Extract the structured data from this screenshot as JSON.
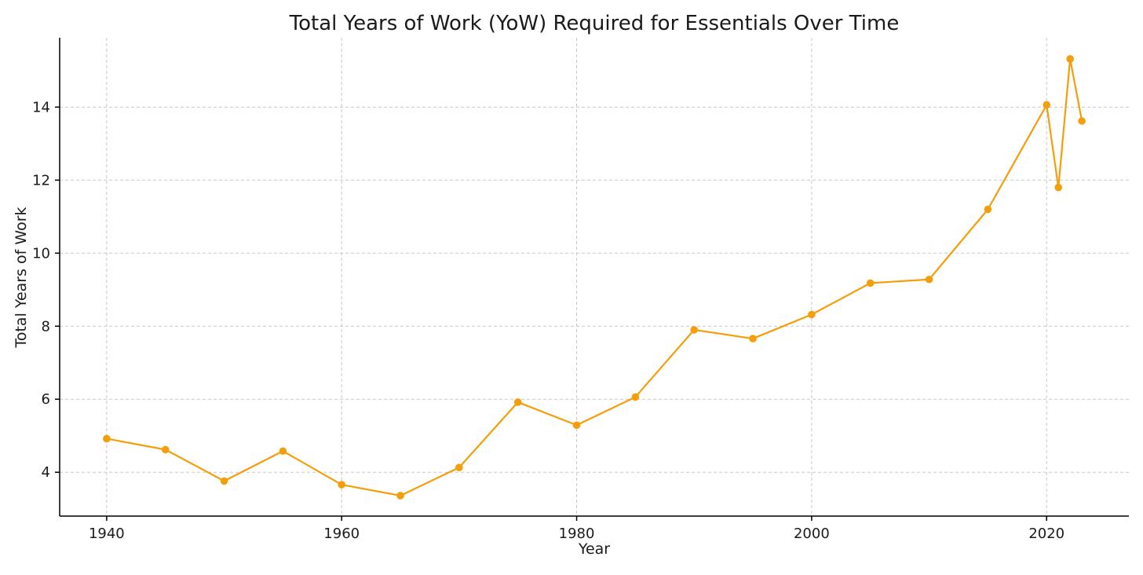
{
  "chart_data": {
    "type": "line",
    "title": "Total Years of Work (YoW) Required for Essentials Over Time",
    "xlabel": "Year",
    "ylabel": "Total Years of Work",
    "xlim": [
      1936,
      2027
    ],
    "ylim": [
      2.8,
      15.9
    ],
    "x_ticks": [
      1940,
      1960,
      1980,
      2000,
      2020
    ],
    "y_ticks": [
      4,
      6,
      8,
      10,
      12,
      14
    ],
    "grid": true,
    "series": [
      {
        "color": "#f59e0b",
        "marker": "circle",
        "x": [
          1940,
          1945,
          1950,
          1955,
          1960,
          1965,
          1970,
          1975,
          1980,
          1985,
          1990,
          1995,
          2000,
          2005,
          2010,
          2015,
          2020,
          2021,
          2022,
          2023
        ],
        "y": [
          4.92,
          4.62,
          3.76,
          4.58,
          3.66,
          3.36,
          4.13,
          5.92,
          5.29,
          6.06,
          7.9,
          7.66,
          8.32,
          9.18,
          9.28,
          11.2,
          14.06,
          11.8,
          15.32,
          13.62
        ]
      }
    ]
  }
}
